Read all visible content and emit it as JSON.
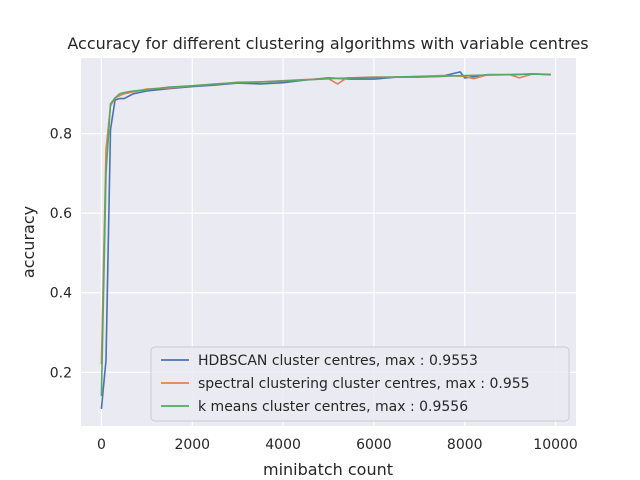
{
  "chart_data": {
    "type": "line",
    "title": "Accuracy for different clustering algorithms with variable centres",
    "xlabel": "minibatch count",
    "ylabel": "accuracy",
    "xlim": [
      -450,
      10450
    ],
    "ylim": [
      0.065,
      0.99
    ],
    "xticks": [
      0,
      2000,
      4000,
      6000,
      8000,
      10000
    ],
    "yticks": [
      0.2,
      0.4,
      0.6,
      0.8
    ],
    "grid": true,
    "legend_position": "lower-right",
    "series": [
      {
        "name": "HDBSCAN cluster centres, max : 0.9553",
        "color": "#4c72b0",
        "x": [
          0,
          100,
          200,
          300,
          400,
          500,
          700,
          1000,
          1500,
          2000,
          2500,
          3000,
          3500,
          4000,
          4500,
          5000,
          5500,
          6000,
          6500,
          7000,
          7500,
          7900,
          8000,
          8500,
          9000,
          9500,
          9900
        ],
        "y": [
          0.108,
          0.23,
          0.81,
          0.885,
          0.888,
          0.888,
          0.9,
          0.907,
          0.913,
          0.918,
          0.922,
          0.927,
          0.925,
          0.928,
          0.935,
          0.94,
          0.937,
          0.937,
          0.942,
          0.942,
          0.944,
          0.955,
          0.94,
          0.948,
          0.948,
          0.95,
          0.948
        ]
      },
      {
        "name": "spectral clustering cluster centres, max : 0.955",
        "color": "#dd8452",
        "x": [
          0,
          100,
          200,
          300,
          400,
          500,
          700,
          1000,
          1500,
          2000,
          2500,
          3000,
          3500,
          4000,
          4500,
          5000,
          5200,
          5400,
          6000,
          6500,
          7000,
          7500,
          8000,
          8200,
          8500,
          9000,
          9200,
          9500,
          9900
        ],
        "y": [
          0.22,
          0.76,
          0.87,
          0.89,
          0.895,
          0.9,
          0.905,
          0.912,
          0.915,
          0.92,
          0.925,
          0.928,
          0.93,
          0.933,
          0.936,
          0.938,
          0.925,
          0.94,
          0.942,
          0.942,
          0.944,
          0.946,
          0.944,
          0.938,
          0.948,
          0.948,
          0.94,
          0.95,
          0.949
        ]
      },
      {
        "name": "k means cluster centres, max : 0.9556",
        "color": "#55a868",
        "x": [
          0,
          100,
          200,
          300,
          400,
          500,
          700,
          1000,
          1500,
          2000,
          2500,
          3000,
          3500,
          4000,
          4500,
          5000,
          5500,
          6000,
          6500,
          7000,
          7500,
          8000,
          8500,
          9000,
          9500,
          9900
        ],
        "y": [
          0.14,
          0.7,
          0.875,
          0.89,
          0.9,
          0.903,
          0.907,
          0.91,
          0.917,
          0.92,
          0.924,
          0.929,
          0.93,
          0.932,
          0.935,
          0.938,
          0.94,
          0.941,
          0.942,
          0.943,
          0.944,
          0.946,
          0.947,
          0.948,
          0.95,
          0.948
        ]
      }
    ]
  }
}
